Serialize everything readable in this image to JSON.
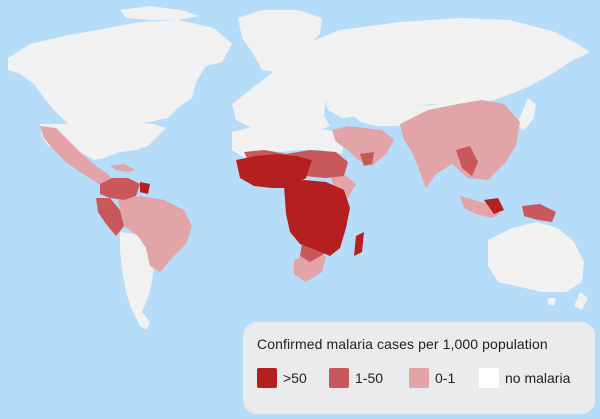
{
  "map": {
    "ocean_color": "#b5dcf9",
    "land_color": "#f1f1f1",
    "category_colors": {
      "high": "#b61f1f",
      "medium": "#c9585c",
      "low": "#e2a4a7",
      "none": "#ffffff"
    }
  },
  "legend": {
    "title": "Confirmed malaria cases per 1,000 population",
    "items": [
      {
        "label": ">50",
        "color": "#b61f1f"
      },
      {
        "label": "1-50",
        "color": "#c9585c"
      },
      {
        "label": "0-1",
        "color": "#e2a4a7"
      },
      {
        "label": "no malaria",
        "color": "#ffffff"
      }
    ]
  }
}
